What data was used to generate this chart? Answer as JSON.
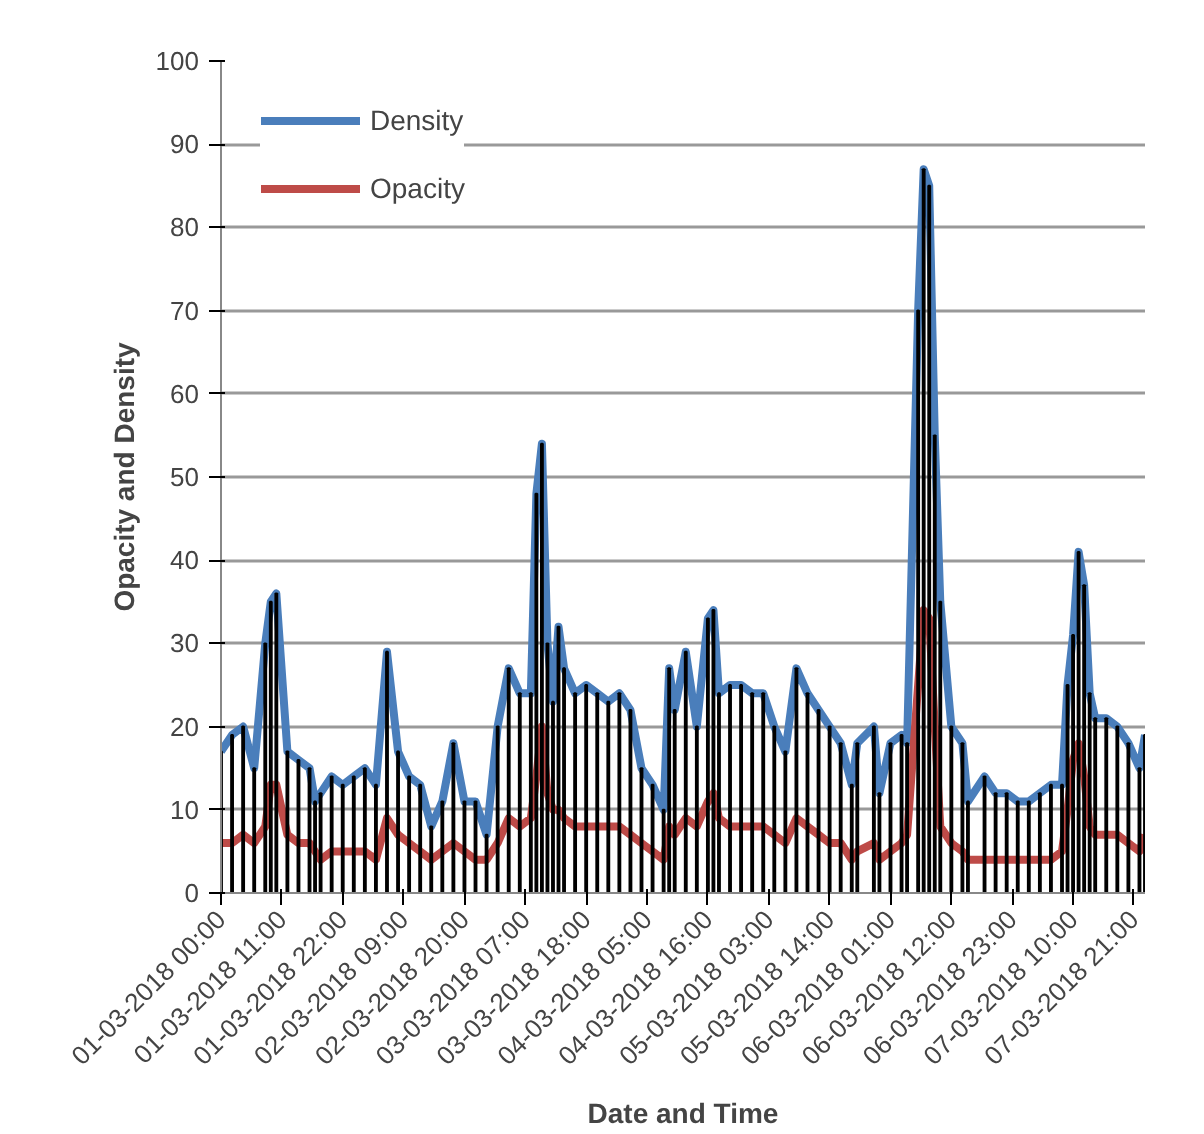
{
  "chart_data": {
    "type": "line",
    "xlabel": "Date and Time",
    "ylabel": "Opacity and Density",
    "x": [
      "2018-03-01T00:00",
      "2018-03-01T02:00",
      "2018-03-01T04:00",
      "2018-03-01T06:00",
      "2018-03-01T08:00",
      "2018-03-01T09:00",
      "2018-03-01T10:00",
      "2018-03-01T12:00",
      "2018-03-01T14:00",
      "2018-03-01T16:00",
      "2018-03-01T17:00",
      "2018-03-01T18:00",
      "2018-03-01T20:00",
      "2018-03-01T22:00",
      "2018-03-02T00:00",
      "2018-03-02T02:00",
      "2018-03-02T04:00",
      "2018-03-02T06:00",
      "2018-03-02T08:00",
      "2018-03-02T10:00",
      "2018-03-02T12:00",
      "2018-03-02T14:00",
      "2018-03-02T16:00",
      "2018-03-02T18:00",
      "2018-03-02T20:00",
      "2018-03-02T22:00",
      "2018-03-03T00:00",
      "2018-03-03T02:00",
      "2018-03-03T04:00",
      "2018-03-03T06:00",
      "2018-03-03T08:00",
      "2018-03-03T09:00",
      "2018-03-03T10:00",
      "2018-03-03T11:00",
      "2018-03-03T12:00",
      "2018-03-03T13:00",
      "2018-03-03T14:00",
      "2018-03-03T16:00",
      "2018-03-03T18:00",
      "2018-03-03T20:00",
      "2018-03-03T22:00",
      "2018-03-04T00:00",
      "2018-03-04T02:00",
      "2018-03-04T04:00",
      "2018-03-04T06:00",
      "2018-03-04T08:00",
      "2018-03-04T09:00",
      "2018-03-04T10:00",
      "2018-03-04T12:00",
      "2018-03-04T14:00",
      "2018-03-04T16:00",
      "2018-03-04T17:00",
      "2018-03-04T18:00",
      "2018-03-04T20:00",
      "2018-03-04T22:00",
      "2018-03-05T00:00",
      "2018-03-05T02:00",
      "2018-03-05T04:00",
      "2018-03-05T06:00",
      "2018-03-05T08:00",
      "2018-03-05T10:00",
      "2018-03-05T12:00",
      "2018-03-05T14:00",
      "2018-03-05T16:00",
      "2018-03-05T18:00",
      "2018-03-05T19:00",
      "2018-03-05T22:00",
      "2018-03-05T23:00",
      "2018-03-06T01:00",
      "2018-03-06T03:00",
      "2018-03-06T04:00",
      "2018-03-06T06:00",
      "2018-03-06T07:00",
      "2018-03-06T08:00",
      "2018-03-06T09:00",
      "2018-03-06T10:00",
      "2018-03-06T12:00",
      "2018-03-06T14:00",
      "2018-03-06T15:00",
      "2018-03-06T18:00",
      "2018-03-06T20:00",
      "2018-03-06T22:00",
      "2018-03-07T00:00",
      "2018-03-07T02:00",
      "2018-03-07T04:00",
      "2018-03-07T06:00",
      "2018-03-07T08:00",
      "2018-03-07T09:00",
      "2018-03-07T10:00",
      "2018-03-07T11:00",
      "2018-03-07T12:00",
      "2018-03-07T13:00",
      "2018-03-07T14:00",
      "2018-03-07T16:00",
      "2018-03-07T18:00",
      "2018-03-07T20:00",
      "2018-03-07T22:00",
      "2018-03-07T23:00"
    ],
    "series": [
      {
        "type": "bar",
        "color": "#000000",
        "values": [
          17,
          19,
          20,
          15,
          30,
          35,
          36,
          17,
          16,
          15,
          11,
          12,
          14,
          13,
          14,
          15,
          13,
          29,
          17,
          14,
          13,
          8,
          11,
          18,
          11,
          11,
          7,
          20,
          27,
          24,
          24,
          48,
          54,
          30,
          23,
          32,
          27,
          24,
          25,
          24,
          23,
          24,
          22,
          15,
          13,
          10,
          27,
          22,
          29,
          20,
          33,
          34,
          24,
          25,
          25,
          24,
          24,
          20,
          17,
          27,
          24,
          22,
          20,
          18,
          13,
          18,
          20,
          12,
          18,
          19,
          18,
          70,
          87,
          85,
          55,
          35,
          20,
          18,
          11,
          14,
          12,
          12,
          11,
          11,
          12,
          13,
          13,
          25,
          31,
          41,
          37,
          24,
          21,
          21,
          20,
          18,
          15,
          19
        ]
      },
      {
        "name": "Density",
        "color": "#4a7ebb",
        "values": [
          17,
          19,
          20,
          15,
          30,
          35,
          36,
          17,
          16,
          15,
          11,
          12,
          14,
          13,
          14,
          15,
          13,
          29,
          17,
          14,
          13,
          8,
          11,
          18,
          11,
          11,
          7,
          20,
          27,
          24,
          24,
          48,
          54,
          30,
          23,
          32,
          27,
          24,
          25,
          24,
          23,
          24,
          22,
          15,
          13,
          10,
          27,
          22,
          29,
          20,
          33,
          34,
          24,
          25,
          25,
          24,
          24,
          20,
          17,
          27,
          24,
          22,
          20,
          18,
          13,
          18,
          20,
          12,
          18,
          19,
          18,
          70,
          87,
          85,
          55,
          35,
          20,
          18,
          11,
          14,
          12,
          12,
          11,
          11,
          12,
          13,
          13,
          25,
          31,
          41,
          37,
          24,
          21,
          21,
          20,
          18,
          15,
          19
        ]
      },
      {
        "name": "Opacity",
        "color": "#be4b48",
        "values": [
          6,
          6,
          7,
          6,
          8,
          13,
          13,
          7,
          6,
          6,
          5,
          4,
          5,
          5,
          5,
          5,
          4,
          9,
          7,
          6,
          5,
          4,
          5,
          6,
          5,
          4,
          4,
          6,
          9,
          8,
          9,
          14,
          20,
          12,
          10,
          10,
          9,
          8,
          8,
          8,
          8,
          8,
          7,
          6,
          5,
          4,
          8,
          7,
          9,
          8,
          11,
          12,
          9,
          8,
          8,
          8,
          8,
          7,
          6,
          9,
          8,
          7,
          6,
          6,
          4,
          5,
          6,
          4,
          5,
          6,
          7,
          25,
          34,
          33,
          20,
          8,
          6,
          5,
          4,
          4,
          4,
          4,
          4,
          4,
          4,
          4,
          5,
          10,
          16,
          18,
          14,
          8,
          7,
          7,
          7,
          6,
          5,
          7
        ]
      }
    ],
    "xlim": [
      "2018-03-01T00:00",
      "2018-03-07T23:00"
    ],
    "xticks": [
      {
        "value": "2018-03-01T00:00",
        "label": "01-03-2018 00:00"
      },
      {
        "value": "2018-03-01T11:00",
        "label": "01-03-2018 11:00"
      },
      {
        "value": "2018-03-01T22:00",
        "label": "01-03-2018 22:00"
      },
      {
        "value": "2018-03-02T09:00",
        "label": "02-03-2018 09:00"
      },
      {
        "value": "2018-03-02T20:00",
        "label": "02-03-2018 20:00"
      },
      {
        "value": "2018-03-03T07:00",
        "label": "03-03-2018 07:00"
      },
      {
        "value": "2018-03-03T18:00",
        "label": "03-03-2018 18:00"
      },
      {
        "value": "2018-03-04T05:00",
        "label": "04-03-2018 05:00"
      },
      {
        "value": "2018-03-04T16:00",
        "label": "04-03-2018 16:00"
      },
      {
        "value": "2018-03-05T03:00",
        "label": "05-03-2018 03:00"
      },
      {
        "value": "2018-03-05T14:00",
        "label": "05-03-2018 14:00"
      },
      {
        "value": "2018-03-06T01:00",
        "label": "06-03-2018 01:00"
      },
      {
        "value": "2018-03-06T12:00",
        "label": "06-03-2018 12:00"
      },
      {
        "value": "2018-03-06T23:00",
        "label": "06-03-2018 23:00"
      },
      {
        "value": "2018-03-07T10:00",
        "label": "07-03-2018 10:00"
      },
      {
        "value": "2018-03-07T21:00",
        "label": "07-03-2018 21:00"
      }
    ],
    "ylim": [
      0,
      100
    ],
    "yticks": [
      0,
      10,
      20,
      30,
      40,
      50,
      60,
      70,
      80,
      90,
      100
    ],
    "grid": "y",
    "legend": "top left",
    "marker": "none",
    "line_style": "solid"
  }
}
